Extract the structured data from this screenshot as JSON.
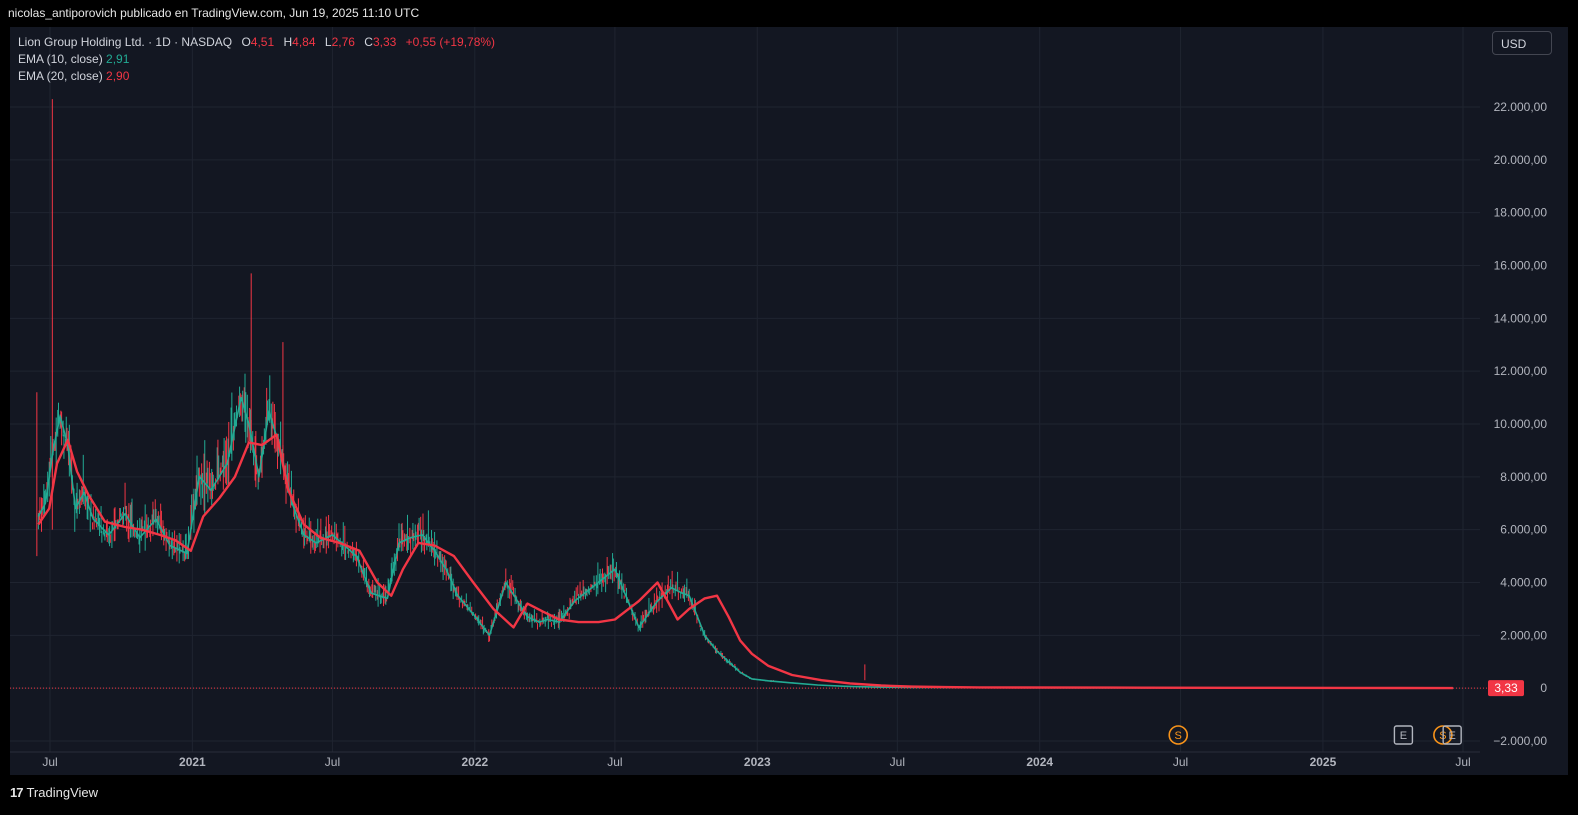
{
  "header": {
    "text": "nicolas_antiporovich publicado en TradingView.com, Jun 19, 2025 11:10 UTC"
  },
  "legend": {
    "symbol": "Lion Group Holding Ltd. · 1D · NASDAQ",
    "o_label": "O",
    "o_value": "4,51",
    "h_label": "H",
    "h_value": "4,84",
    "l_label": "L",
    "l_value": "2,76",
    "c_label": "C",
    "c_value": "3,33",
    "change": "+0,55 (+19,78%)",
    "ema10_label": "EMA (10, close)",
    "ema10_value": "2,91",
    "ema20_label": "EMA (20, close)",
    "ema20_value": "2,90"
  },
  "currency_button": "USD",
  "price_tag": "3,33",
  "footer": {
    "logo_mark": "17",
    "logo_text": "TradingView"
  },
  "colors": {
    "up": "#22ab94",
    "down": "#f23645",
    "ema10": "#22ab94",
    "ema20": "#f23645",
    "background": "#131722",
    "grid": "#1f2430"
  },
  "events": [
    {
      "type": "S",
      "date": "2024-06-28",
      "color": "#f7931a"
    },
    {
      "type": "E",
      "date": "2025-04-15",
      "color": "#b2b5be"
    },
    {
      "type": "S",
      "date": "2025-06-05",
      "color": "#f7931a"
    },
    {
      "type": "E",
      "date": "2025-06-17",
      "color": "#b2b5be"
    }
  ],
  "chart_data": {
    "type": "line",
    "y_axis": {
      "min": -2000,
      "max": 24000,
      "ticks": [
        -2000,
        0,
        2000,
        4000,
        6000,
        8000,
        10000,
        12000,
        14000,
        16000,
        18000,
        20000,
        22000
      ],
      "tick_labels": [
        "−2.000,00",
        "0",
        "2.000,00",
        "4.000,00",
        "6.000,00",
        "8.000,00",
        "10.000,00",
        "12.000,00",
        "14.000,00",
        "16.000,00",
        "18.000,00",
        "20.000,00",
        "22.000,00"
      ]
    },
    "x_axis": {
      "labels": [
        {
          "text": "Jul",
          "date": "2020-07-01"
        },
        {
          "text": "2021",
          "date": "2021-01-01"
        },
        {
          "text": "Jul",
          "date": "2021-07-01"
        },
        {
          "text": "2022",
          "date": "2022-01-01"
        },
        {
          "text": "Jul",
          "date": "2022-07-01"
        },
        {
          "text": "2023",
          "date": "2023-01-01"
        },
        {
          "text": "Jul",
          "date": "2023-07-01"
        },
        {
          "text": "2024",
          "date": "2024-01-01"
        },
        {
          "text": "Jul",
          "date": "2024-07-01"
        },
        {
          "text": "2025",
          "date": "2025-01-01"
        },
        {
          "text": "Jul",
          "date": "2025-07-01"
        }
      ]
    },
    "series": [
      {
        "name": "EMA (10, close)",
        "x": [
          "2020-06-16",
          "2020-06-25",
          "2020-07-05",
          "2020-07-14",
          "2020-07-24",
          "2020-08-03",
          "2020-08-14",
          "2020-08-26",
          "2020-09-15",
          "2020-10-06",
          "2020-10-25",
          "2020-11-15",
          "2020-12-03",
          "2020-12-25",
          "2021-01-10",
          "2021-01-25",
          "2021-02-15",
          "2021-03-05",
          "2021-03-15",
          "2021-03-28",
          "2021-04-10",
          "2021-04-25",
          "2021-05-10",
          "2021-05-25",
          "2021-06-10",
          "2021-07-01",
          "2021-08-01",
          "2021-08-20",
          "2021-09-10",
          "2021-09-25",
          "2021-10-10",
          "2021-10-25",
          "2021-11-10",
          "2021-11-25",
          "2021-12-10",
          "2021-12-30",
          "2022-01-20",
          "2022-02-10",
          "2022-02-25",
          "2022-03-10",
          "2022-03-25",
          "2022-04-05",
          "2022-04-20",
          "2022-05-10",
          "2022-06-01",
          "2022-07-01",
          "2022-08-01",
          "2022-08-25",
          "2022-09-12",
          "2022-09-26",
          "2022-10-05",
          "2022-10-25",
          "2022-11-10",
          "2022-11-25",
          "2022-12-10",
          "2022-12-25",
          "2023-01-15",
          "2023-02-15",
          "2023-03-20",
          "2023-04-25",
          "2023-06-01",
          "2023-07-15",
          "2023-08-20",
          "2023-10-01",
          "2023-11-15",
          "2024-03-01",
          "2024-08-01",
          "2025-01-01",
          "2025-06-18"
        ],
        "y": [
          6500,
          7000,
          9000,
          10300,
          9200,
          6800,
          7400,
          6400,
          5800,
          6600,
          5700,
          6400,
          5400,
          5100,
          8000,
          7500,
          8500,
          11000,
          10000,
          8000,
          10500,
          9000,
          7000,
          5800,
          5500,
          5800,
          5000,
          3600,
          3400,
          5500,
          5700,
          5800,
          5200,
          4500,
          3500,
          2800,
          2000,
          4000,
          3300,
          2700,
          2500,
          2600,
          2500,
          3300,
          3800,
          4500,
          2300,
          3300,
          3800,
          3600,
          3500,
          2000,
          1400,
          1000,
          600,
          350,
          280,
          200,
          120,
          70,
          40,
          30,
          25,
          20,
          18,
          15,
          12,
          10,
          3
        ]
      },
      {
        "name": "EMA (20, close)",
        "x": [
          "2020-06-16",
          "2020-06-30",
          "2020-07-10",
          "2020-07-24",
          "2020-08-05",
          "2020-08-20",
          "2020-09-10",
          "2020-10-06",
          "2020-10-28",
          "2020-11-20",
          "2020-12-10",
          "2020-12-30",
          "2021-01-15",
          "2021-02-05",
          "2021-02-25",
          "2021-03-15",
          "2021-04-01",
          "2021-04-20",
          "2021-05-05",
          "2021-05-25",
          "2021-06-15",
          "2021-07-10",
          "2021-08-05",
          "2021-08-28",
          "2021-09-15",
          "2021-09-30",
          "2021-10-20",
          "2021-11-10",
          "2021-12-05",
          "2021-12-30",
          "2022-01-25",
          "2022-02-20",
          "2022-03-10",
          "2022-03-30",
          "2022-04-20",
          "2022-05-15",
          "2022-06-10",
          "2022-07-01",
          "2022-08-01",
          "2022-08-25",
          "2022-09-20",
          "2022-10-05",
          "2022-10-25",
          "2022-11-10",
          "2022-11-25",
          "2022-12-10",
          "2022-12-25",
          "2023-01-15",
          "2023-02-15",
          "2023-03-25",
          "2023-05-01",
          "2023-06-10",
          "2023-07-20",
          "2023-09-01",
          "2023-10-15",
          "2023-12-01",
          "2024-04-01",
          "2024-09-01",
          "2025-02-01",
          "2025-06-18"
        ],
        "y": [
          6200,
          6800,
          8500,
          9400,
          8200,
          7300,
          6300,
          6100,
          6000,
          5800,
          5600,
          5200,
          6500,
          7200,
          8000,
          9300,
          9200,
          9600,
          7500,
          6200,
          5700,
          5500,
          5200,
          4000,
          3500,
          4500,
          5500,
          5400,
          5000,
          4000,
          3000,
          2300,
          3200,
          2900,
          2600,
          2500,
          2500,
          2600,
          3300,
          4000,
          2600,
          3000,
          3400,
          3500,
          2700,
          1800,
          1300,
          850,
          500,
          300,
          180,
          100,
          60,
          40,
          30,
          25,
          20,
          15,
          10,
          3
        ]
      }
    ]
  }
}
